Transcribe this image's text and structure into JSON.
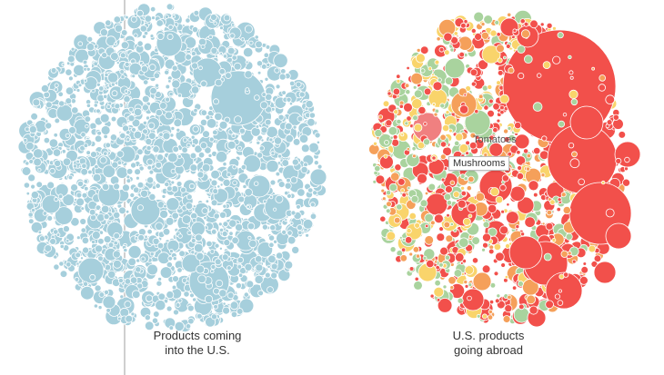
{
  "clusters": {
    "imports": {
      "label_line1": "Products coming",
      "label_line2": "into the U.S.",
      "color": "#a6cfdc"
    },
    "exports": {
      "label_line1": "U.S. products",
      "label_line2": "going abroad",
      "colors": {
        "red": "#f2504b",
        "orange": "#f5a05a",
        "yellow": "#f9d46b",
        "green": "#a9d39e",
        "pink": "#f08080"
      }
    }
  },
  "annotations": {
    "tomatoes": "Tomatoes",
    "mushrooms": "Mushrooms"
  }
}
